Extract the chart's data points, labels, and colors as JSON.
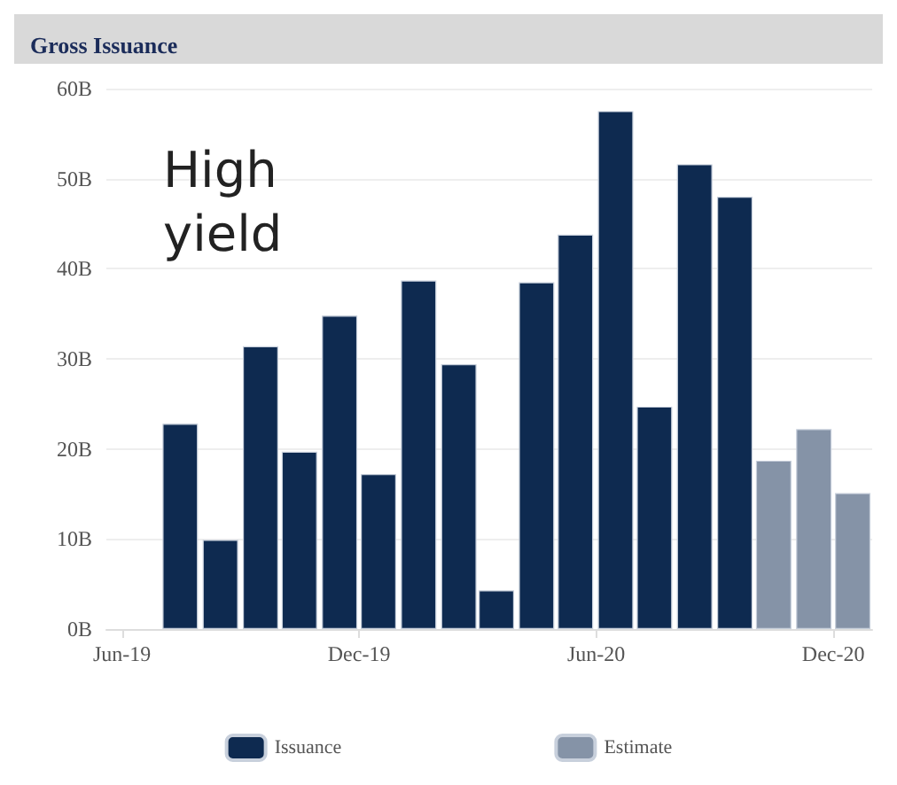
{
  "chart_data": {
    "type": "bar",
    "title": "Gross Issuance",
    "x": [
      "2019-07-16",
      "2019-08-16",
      "2019-09-16",
      "2019-10-16",
      "2019-11-16",
      "2019-12-16",
      "2020-01-16",
      "2020-02-16",
      "2020-03-16",
      "2020-04-16",
      "2020-05-16",
      "2020-06-16",
      "2020-07-16",
      "2020-08-16",
      "2020-09-16",
      "2020-10-16",
      "2020-11-16",
      "2020-12-16"
    ],
    "series": [
      {
        "name": "Issuance",
        "color": "#0e2a50",
        "values": [
          22.8,
          9.9,
          31.4,
          19.7,
          34.8,
          17.2,
          38.7,
          29.4,
          4.3,
          38.5,
          43.8,
          57.5,
          24.7,
          51.6,
          48.0,
          null,
          null,
          null
        ]
      },
      {
        "name": "Estimate",
        "color": "#8593a7",
        "values": [
          null,
          null,
          null,
          null,
          null,
          null,
          null,
          null,
          null,
          null,
          null,
          null,
          null,
          null,
          null,
          18.7,
          22.2,
          15.1
        ]
      }
    ],
    "xlim": [
      "2019-05-20",
      "2020-12-31"
    ],
    "xticks": [
      {
        "value": "2019-06-01",
        "label": "Jun-19"
      },
      {
        "value": "2019-12-01",
        "label": "Dec-19"
      },
      {
        "value": "2020-06-01",
        "label": "Jun-20"
      },
      {
        "value": "2020-12-01",
        "label": "Dec-20"
      }
    ],
    "ylim": [
      0,
      60
    ],
    "yticks": [
      {
        "value": 0,
        "label": "0B"
      },
      {
        "value": 10,
        "label": "10B"
      },
      {
        "value": 20,
        "label": "20B"
      },
      {
        "value": 30,
        "label": "30B"
      },
      {
        "value": 40,
        "label": "40B"
      },
      {
        "value": 50,
        "label": "50B"
      },
      {
        "value": 60,
        "label": "60B"
      }
    ],
    "annotations": [
      "High yield"
    ],
    "grid": "y",
    "legend": "bottom"
  }
}
